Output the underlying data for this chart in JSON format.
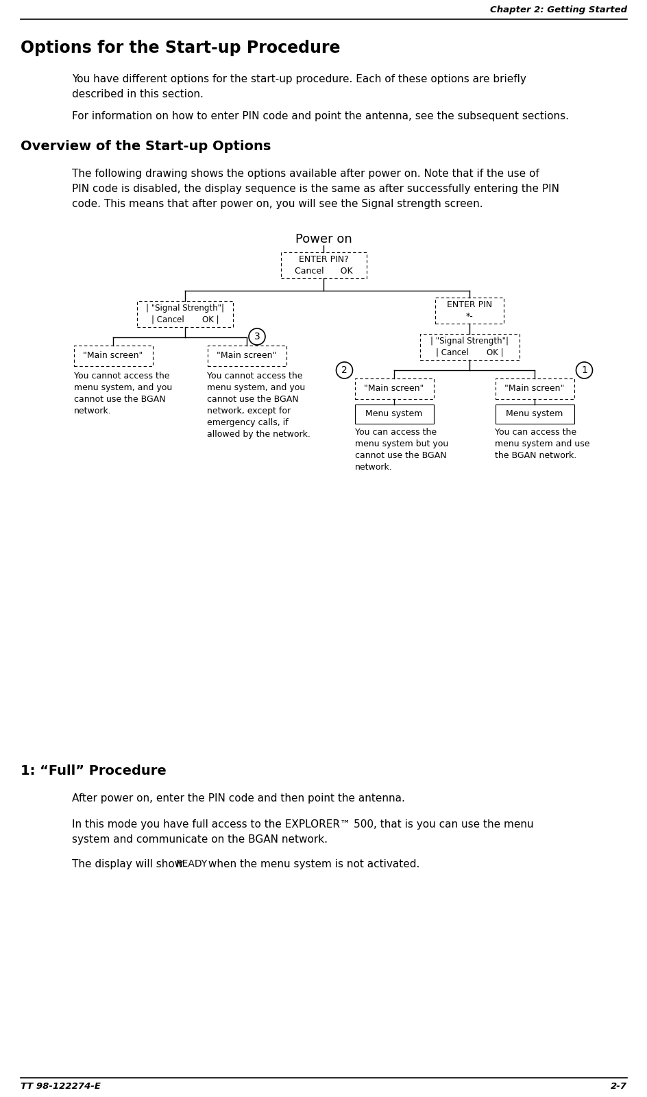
{
  "bg_color": "#ffffff",
  "header_text": "Chapter 2: Getting Started",
  "footer_left": "TT 98-122274-E",
  "footer_right": "2-7",
  "title_main": "Options for the Start-up Procedure",
  "para1_line1": "You have different options for the start-up procedure. Each of these options are briefly",
  "para1_line2": "described in this section.",
  "para2": "For information on how to enter PIN code and point the antenna, see the subsequent sections.",
  "section_title": "Overview of the Start-up Options",
  "section_para_line1": "The following drawing shows the options available after power on. Note that if the use of",
  "section_para_line2": "PIN code is disabled, the display sequence is the same as after successfully entering the PIN",
  "section_para_line3": "code. This means that after power on, you will see the Signal strength screen.",
  "diagram_title": "Power on",
  "section2_title": "1: “Full” Procedure",
  "section2_para1": "After power on, enter the PIN code and then point the antenna.",
  "section2_para2_line1": "In this mode you have full access to the EXPLORER™ 500, that is you can use the menu",
  "section2_para2_line2": "system and communicate on the BGAN network.",
  "section2_para3_pre": "The display will show ",
  "section2_para3_code": "READY",
  "section2_para3_post": " when the menu system is not activated."
}
